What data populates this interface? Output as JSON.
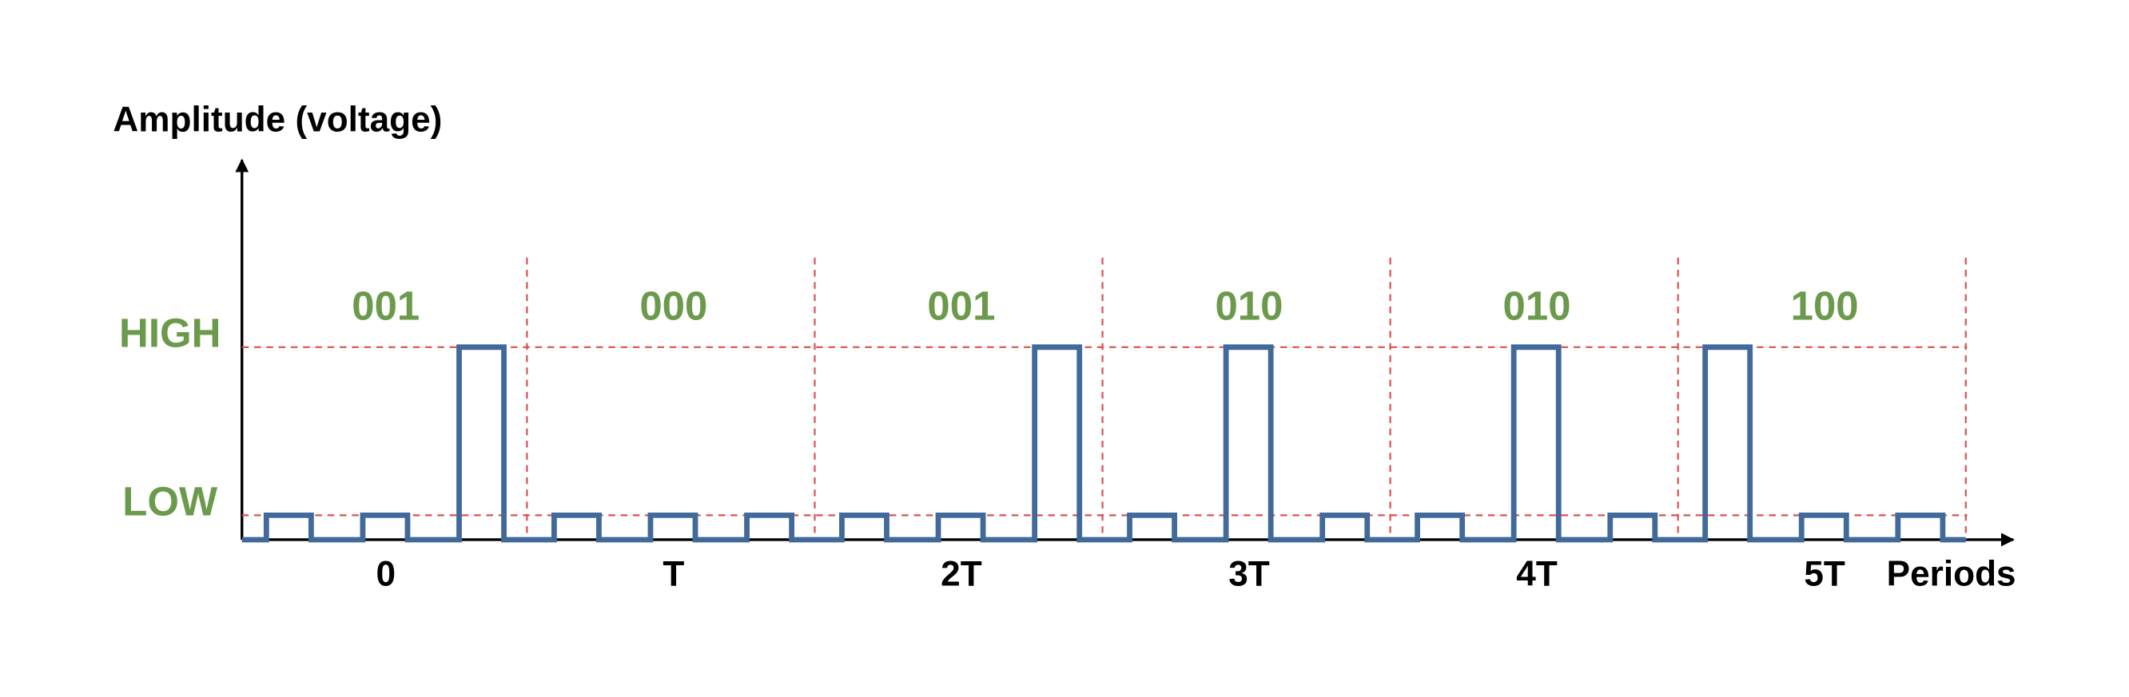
{
  "axes": {
    "y_label": "Amplitude (voltage)",
    "x_label": "Periods"
  },
  "levels": {
    "high": "HIGH",
    "low": "LOW"
  },
  "periods": [
    {
      "bits": "001",
      "label": "0"
    },
    {
      "bits": "000",
      "label": "T"
    },
    {
      "bits": "001",
      "label": "2T"
    },
    {
      "bits": "010",
      "label": "3T"
    },
    {
      "bits": "010",
      "label": "4T"
    },
    {
      "bits": "100",
      "label": "5T"
    }
  ]
}
